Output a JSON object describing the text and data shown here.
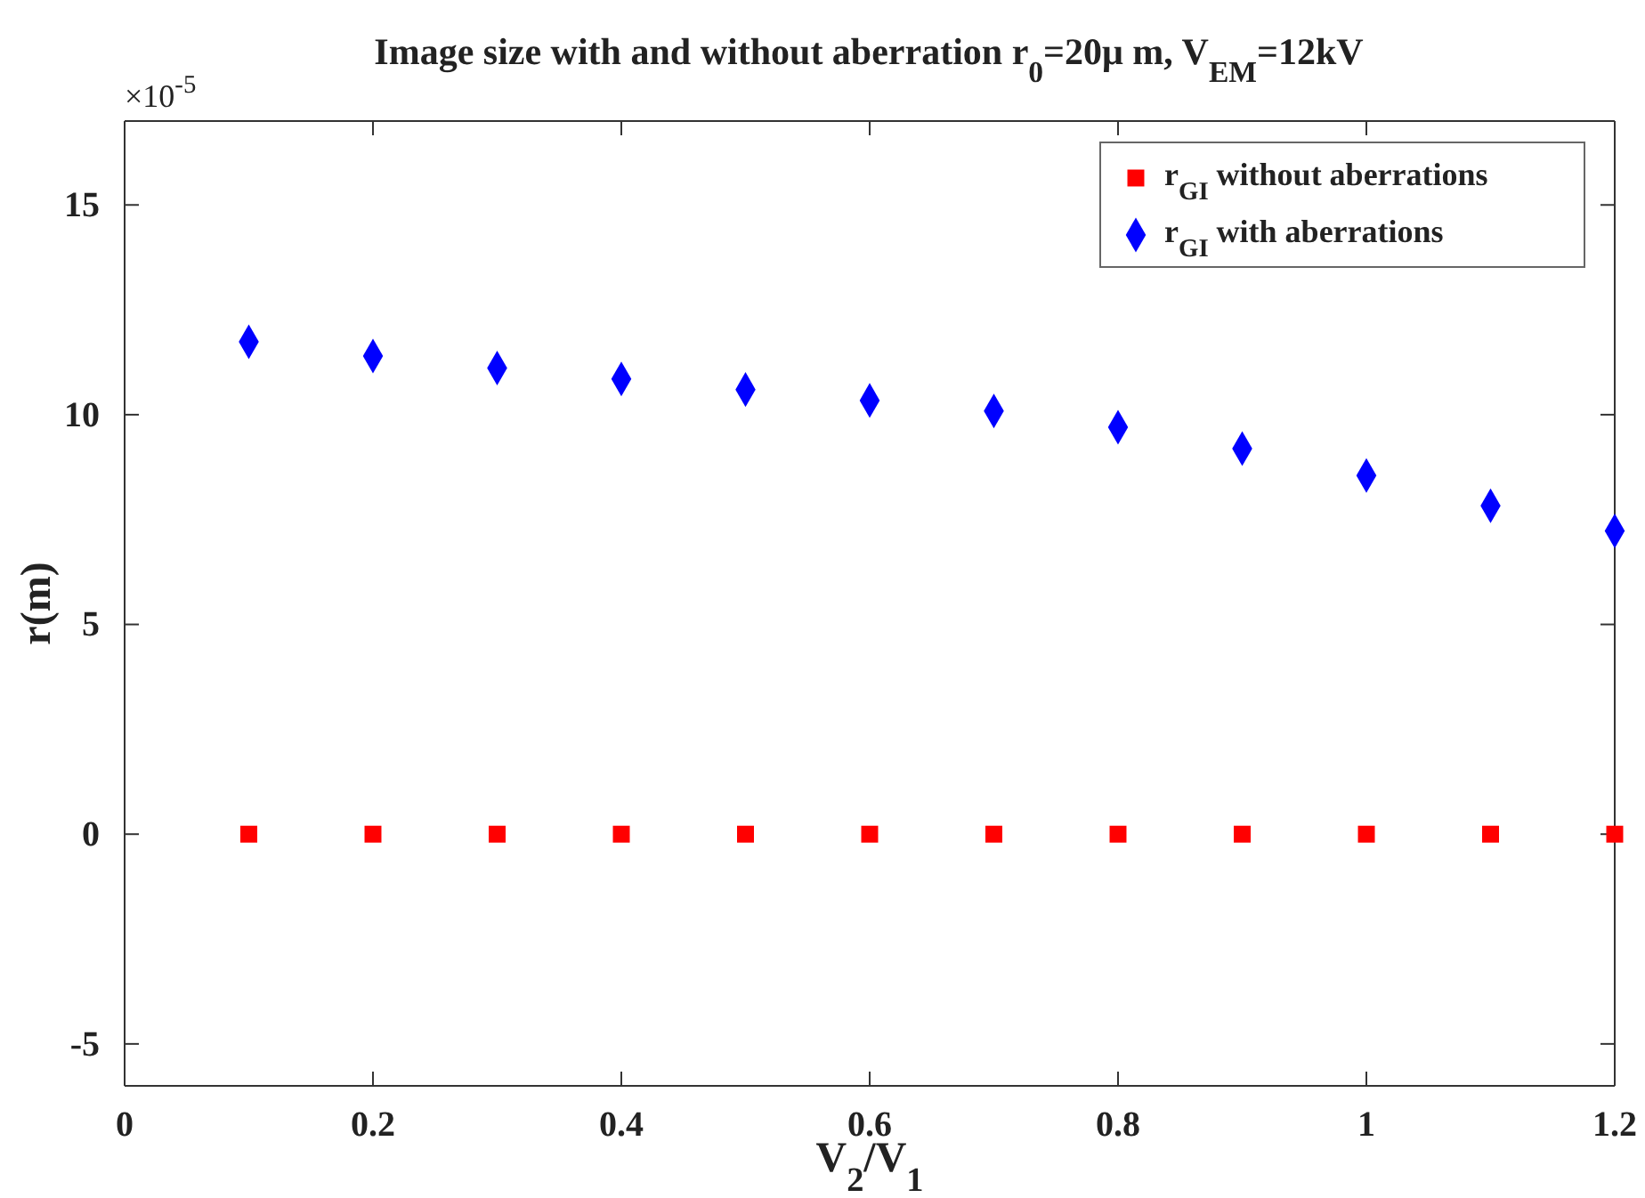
{
  "chart_data": {
    "type": "scatter",
    "title": "Image size with and without aberration r$_{0}$=20μ m, V$_{EM}$=12kV",
    "xlabel": "V$_{2}$/V$_{1}$",
    "ylabel": "r(m)",
    "annotations": [
      "×10$^{-5}$"
    ],
    "x": [
      0.1,
      0.2,
      0.3,
      0.4,
      0.5,
      0.6,
      0.7,
      0.8,
      0.9,
      1.0,
      1.1,
      1.2
    ],
    "series": [
      {
        "name": "r$_{GI}$ without aberrations",
        "color": "#ff0000",
        "marker": "square",
        "values": [
          0,
          0,
          0,
          0,
          0,
          0,
          0,
          0,
          0,
          0,
          0,
          0
        ]
      },
      {
        "name": "r$_{GI}$ with aberrations",
        "color": "#0000ff",
        "marker": "diamond",
        "values": [
          11.74,
          11.4,
          11.11,
          10.85,
          10.6,
          10.34,
          10.09,
          9.7,
          9.19,
          8.55,
          7.83,
          7.23
        ]
      }
    ],
    "xlim": [
      0,
      1.2
    ],
    "xticks": [
      0,
      0.2,
      0.4,
      0.6,
      0.8,
      1,
      1.2
    ],
    "ylim": [
      -6,
      17
    ],
    "yticks": [
      -5,
      0,
      5,
      10,
      15
    ],
    "grid": false,
    "legend": "top right"
  }
}
